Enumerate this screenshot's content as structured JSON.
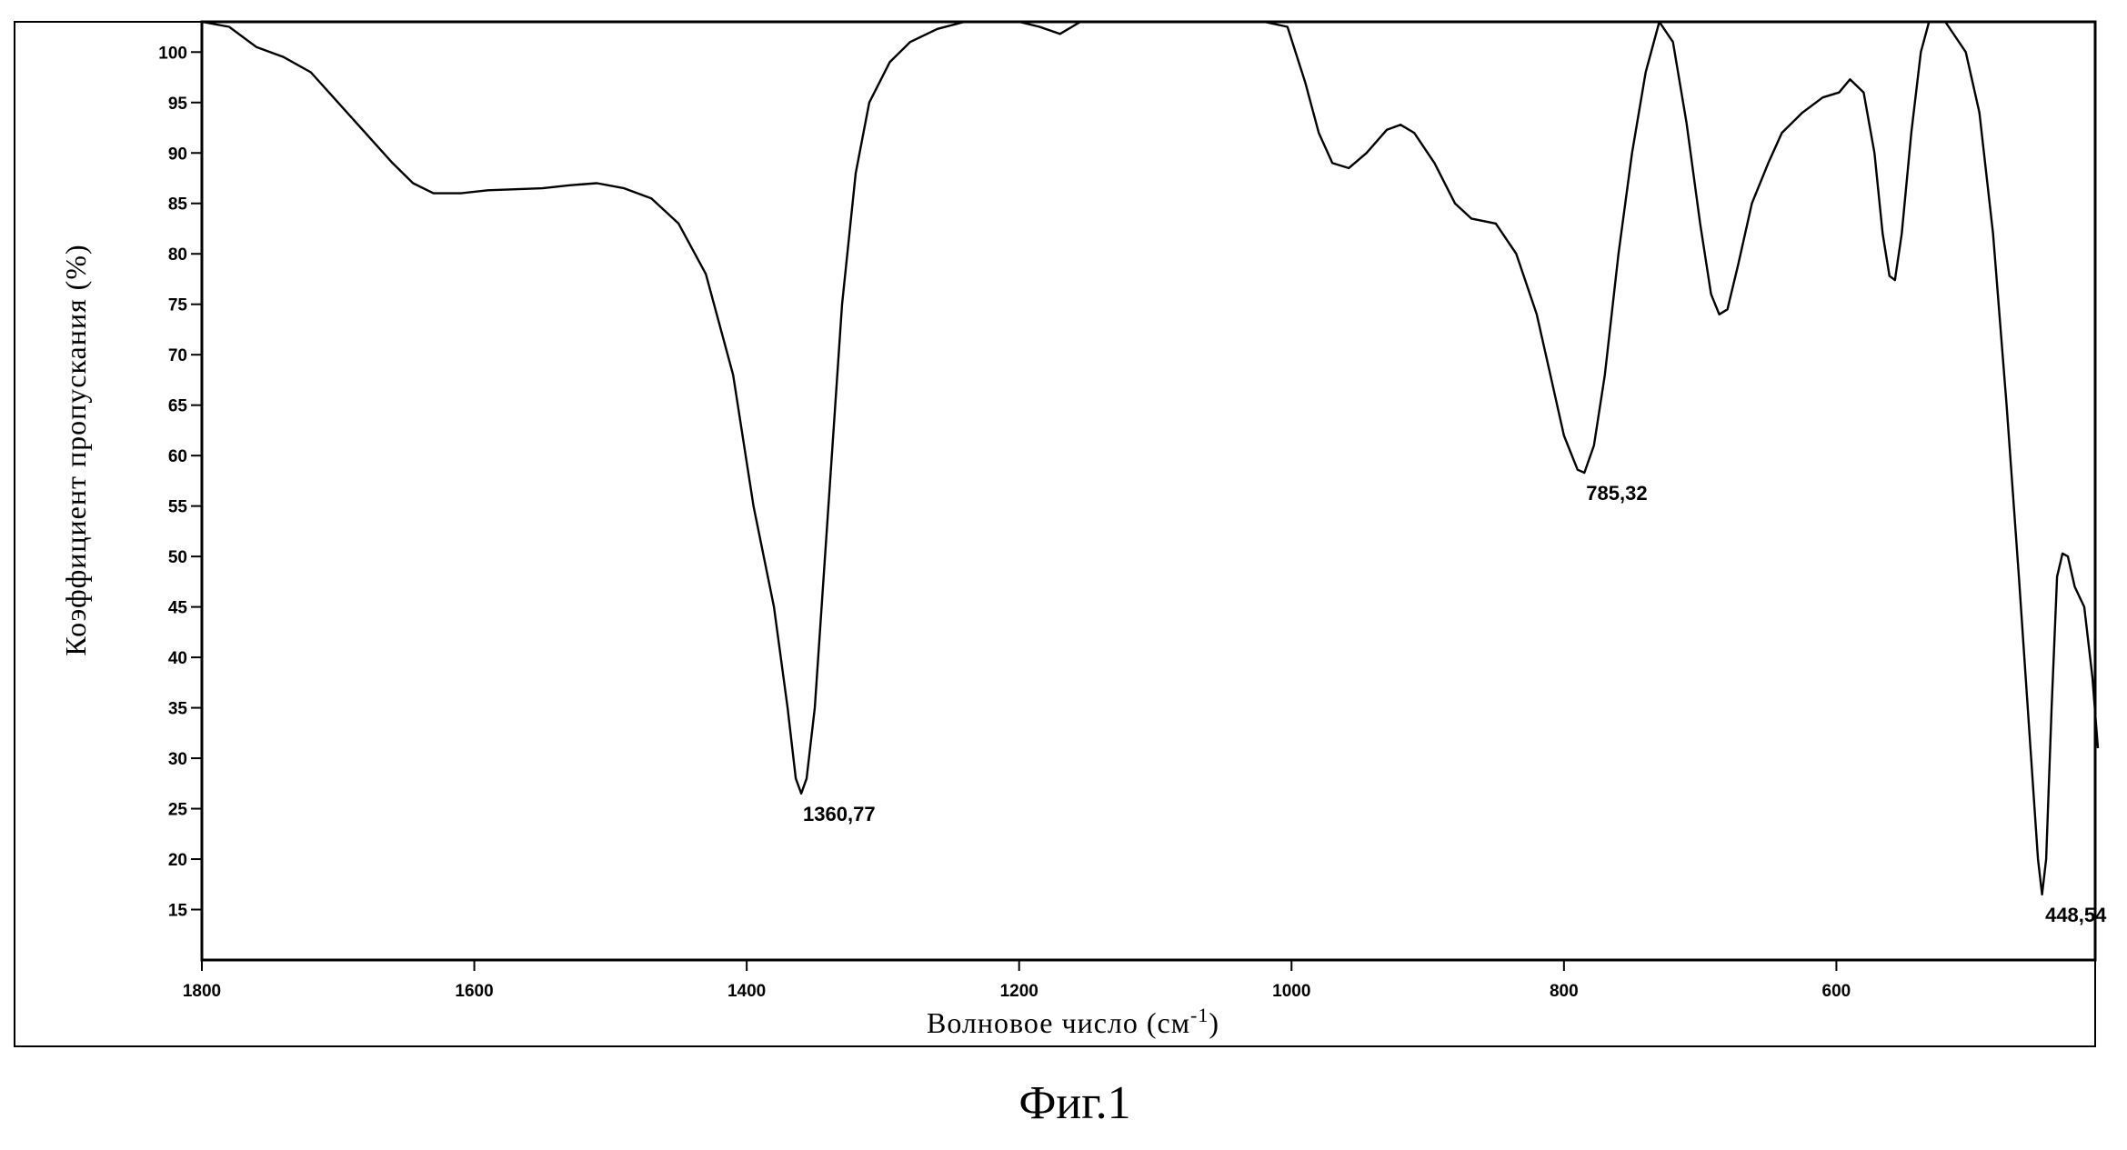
{
  "chart_data": {
    "type": "line",
    "xlabel": "Волновое число (см",
    "xlabel_sup": "-1",
    "xlabel_close": ")",
    "ylabel": "Коэффициент пропускания (%)",
    "caption": "Фиг.1",
    "xlim": [
      1800,
      410
    ],
    "ylim": [
      10,
      103
    ],
    "x_ticks": [
      1800,
      1600,
      1400,
      1200,
      1000,
      800,
      600
    ],
    "y_ticks": [
      15,
      20,
      25,
      30,
      35,
      40,
      45,
      50,
      55,
      60,
      65,
      70,
      75,
      80,
      85,
      90,
      95,
      100
    ],
    "grid": false,
    "series": [
      {
        "points": [
          [
            1800,
            103
          ],
          [
            1780,
            102.5
          ],
          [
            1760,
            100.5
          ],
          [
            1740,
            99.5
          ],
          [
            1720,
            98
          ],
          [
            1700,
            95
          ],
          [
            1680,
            92
          ],
          [
            1660,
            89
          ],
          [
            1645,
            87
          ],
          [
            1630,
            86
          ],
          [
            1610,
            86
          ],
          [
            1590,
            86.3
          ],
          [
            1570,
            86.4
          ],
          [
            1550,
            86.5
          ],
          [
            1530,
            86.8
          ],
          [
            1510,
            87
          ],
          [
            1490,
            86.5
          ],
          [
            1470,
            85.5
          ],
          [
            1450,
            83
          ],
          [
            1430,
            78
          ],
          [
            1410,
            68
          ],
          [
            1395,
            55
          ],
          [
            1380,
            45
          ],
          [
            1370,
            35
          ],
          [
            1364,
            28
          ],
          [
            1360,
            26.5
          ],
          [
            1356,
            28
          ],
          [
            1350,
            35
          ],
          [
            1340,
            55
          ],
          [
            1330,
            75
          ],
          [
            1320,
            88
          ],
          [
            1310,
            95
          ],
          [
            1295,
            99
          ],
          [
            1280,
            101
          ],
          [
            1260,
            102.3
          ],
          [
            1240,
            103
          ],
          [
            1220,
            103
          ],
          [
            1200,
            103
          ],
          [
            1185,
            102.5
          ],
          [
            1170,
            101.8
          ],
          [
            1155,
            103
          ],
          [
            1130,
            103
          ],
          [
            1100,
            103
          ],
          [
            1060,
            103
          ],
          [
            1020,
            103
          ],
          [
            1003,
            102.5
          ],
          [
            990,
            97
          ],
          [
            980,
            92
          ],
          [
            970,
            89
          ],
          [
            958,
            88.5
          ],
          [
            945,
            90
          ],
          [
            930,
            92.3
          ],
          [
            920,
            92.8
          ],
          [
            910,
            92
          ],
          [
            895,
            89
          ],
          [
            880,
            85
          ],
          [
            868,
            83.5
          ],
          [
            850,
            83
          ],
          [
            835,
            80
          ],
          [
            820,
            74
          ],
          [
            810,
            68
          ],
          [
            800,
            62
          ],
          [
            790,
            58.6
          ],
          [
            785,
            58.3
          ],
          [
            778,
            61
          ],
          [
            770,
            68
          ],
          [
            760,
            80
          ],
          [
            750,
            90
          ],
          [
            740,
            98
          ],
          [
            730,
            103
          ],
          [
            720,
            101
          ],
          [
            710,
            93
          ],
          [
            700,
            83
          ],
          [
            692,
            76
          ],
          [
            686,
            74
          ],
          [
            680,
            74.5
          ],
          [
            672,
            79
          ],
          [
            662,
            85
          ],
          [
            650,
            89
          ],
          [
            640,
            92
          ],
          [
            625,
            94
          ],
          [
            610,
            95.5
          ],
          [
            598,
            96
          ],
          [
            590,
            97.3
          ],
          [
            580,
            96
          ],
          [
            572,
            90
          ],
          [
            566,
            82
          ],
          [
            561,
            77.8
          ],
          [
            557,
            77.4
          ],
          [
            552,
            82
          ],
          [
            545,
            92
          ],
          [
            538,
            100
          ],
          [
            532,
            103
          ],
          [
            520,
            103
          ],
          [
            505,
            100
          ],
          [
            495,
            94
          ],
          [
            485,
            82
          ],
          [
            475,
            65
          ],
          [
            466,
            48
          ],
          [
            458,
            32
          ],
          [
            452,
            20
          ],
          [
            449,
            16.5
          ],
          [
            446,
            20
          ],
          [
            442,
            35
          ],
          [
            438,
            48
          ],
          [
            434,
            50.3
          ],
          [
            430,
            50
          ],
          [
            425,
            47
          ],
          [
            418,
            45
          ],
          [
            412,
            38
          ],
          [
            408,
            31
          ]
        ]
      }
    ],
    "annotations": [
      {
        "text": "1360,77",
        "x": 1360,
        "y": 26.5
      },
      {
        "text": "785,32",
        "x": 785,
        "y": 58.3
      },
      {
        "text": "448,54",
        "x": 448,
        "y": 16.5
      }
    ]
  }
}
